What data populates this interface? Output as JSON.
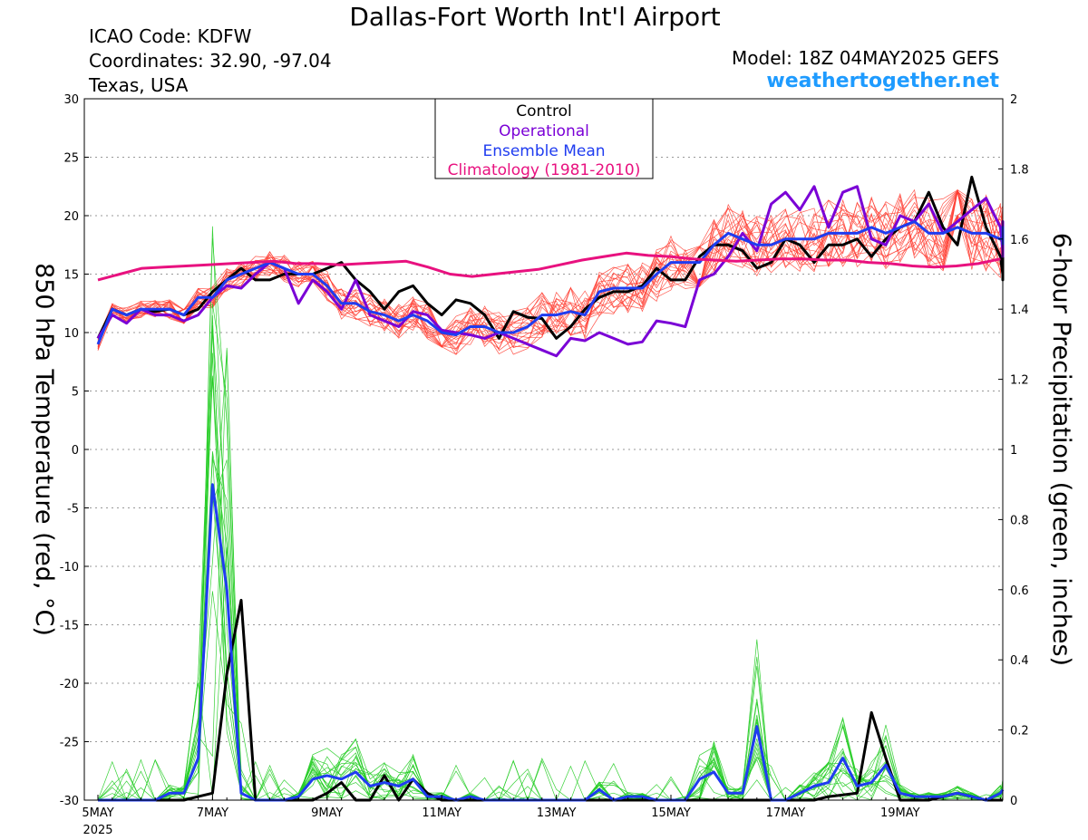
{
  "header": {
    "title": "Dallas-Fort Worth Int'l Airport",
    "icao": "ICAO Code: KDFW",
    "coords": "Coordinates: 32.90, -97.04",
    "region": "Texas, USA",
    "model": "Model: 18Z 04MAY2025 GEFS",
    "brand": "weathertogether.net"
  },
  "colors": {
    "control": "#000000",
    "operational": "#7a00d6",
    "ensemble_mean": "#1f3cf0",
    "climatology": "#e8117f",
    "members_temp": "#ff3b2f",
    "members_precip": "#22cc22",
    "brand": "#1e9bff"
  },
  "chart_data": {
    "type": "line",
    "x_unit": "days since 5MAY 00Z",
    "x_range": [
      0,
      15.75
    ],
    "x_ticks": [
      {
        "x": 0,
        "label": "5MAY",
        "sub": "2025"
      },
      {
        "x": 2,
        "label": "7MAY"
      },
      {
        "x": 4,
        "label": "9MAY"
      },
      {
        "x": 6,
        "label": "11MAY"
      },
      {
        "x": 8,
        "label": "13MAY"
      },
      {
        "x": 10,
        "label": "15MAY"
      },
      {
        "x": 12,
        "label": "17MAY"
      },
      {
        "x": 14,
        "label": "19MAY"
      }
    ],
    "y_left": {
      "label": "850 hPa Temperature (red, °C)",
      "range": [
        -30,
        30
      ],
      "ticks": [
        -30,
        -25,
        -20,
        -15,
        -10,
        -5,
        0,
        5,
        10,
        15,
        20,
        25,
        30
      ]
    },
    "y_right": {
      "label": "6-hour Precipitation (green, inches)",
      "range": [
        0,
        2
      ],
      "ticks": [
        "0",
        "0.2",
        "0.4",
        "0.6",
        "0.8",
        "1",
        "1.2",
        "1.4",
        "1.6",
        "1.8",
        "2"
      ]
    },
    "legend": {
      "position": "top-center",
      "items": [
        "Control",
        "Operational",
        "Ensemble Mean",
        "Climatology (1981-2010)"
      ]
    },
    "temperature_series": [
      {
        "name": "Control",
        "color_key": "control",
        "values": [
          9.5,
          12,
          11.5,
          12,
          11.8,
          12,
          11.5,
          12,
          13.5,
          14.5,
          15.5,
          14.5,
          14.5,
          15,
          15,
          15,
          15.5,
          16,
          14.5,
          13.5,
          12,
          13.5,
          14,
          12.5,
          11.5,
          12.8,
          12.5,
          11.5,
          9.5,
          11.8,
          11.3,
          11.2,
          9.5,
          10.5,
          12,
          13,
          13.5,
          13.5,
          14,
          15.5,
          14.5,
          14.5,
          16.5,
          17.5,
          17.5,
          17,
          15.5,
          16,
          18,
          17.5,
          16,
          17.5,
          17.5,
          18,
          16.5,
          18,
          19,
          19.5,
          22,
          19,
          17.5,
          23.3,
          19,
          16.5,
          15,
          16.5,
          15,
          14.5,
          14.5,
          17,
          15,
          16
        ]
      },
      {
        "name": "Operational",
        "color_key": "operational",
        "values": [
          9.5,
          11.5,
          10.8,
          12,
          11.5,
          11.5,
          11,
          11.5,
          13,
          14,
          13.8,
          15,
          16,
          15.5,
          12.5,
          14.5,
          13.5,
          12,
          14.5,
          11.5,
          11,
          10.5,
          11.8,
          11.5,
          10.2,
          10,
          9.8,
          9.5,
          10,
          9.5,
          9,
          8.5,
          8,
          9.5,
          9.3,
          10,
          9.5,
          9,
          9.2,
          11,
          10.8,
          10.5,
          14.5,
          15,
          16.5,
          18.5,
          17,
          21,
          22,
          20.5,
          22.5,
          19,
          22,
          22.5,
          18,
          17.5,
          20,
          19.5,
          21,
          18.5,
          19.5,
          20.5,
          21.5,
          19,
          17,
          19,
          18.5,
          18.5,
          16.5,
          18,
          19.5,
          18.5
        ]
      },
      {
        "name": "Ensemble Mean",
        "color_key": "ensemble_mean",
        "values": [
          9,
          12,
          11.5,
          12,
          12,
          12,
          11.5,
          13,
          13,
          14.5,
          15,
          15.5,
          16,
          15.5,
          15,
          15,
          14,
          12.5,
          12.5,
          11.8,
          11.5,
          11,
          11.5,
          11,
          10,
          9.8,
          10.5,
          10.5,
          10,
          10,
          10.5,
          11.5,
          11.5,
          11.8,
          11.5,
          13.5,
          13.8,
          13.8,
          13.8,
          15,
          16,
          16,
          16,
          17.5,
          18.5,
          18,
          17.5,
          17.5,
          18,
          18,
          18,
          18.5,
          18.5,
          18.5,
          19,
          18.5,
          19,
          19.5,
          18.5,
          18.5,
          19,
          18.5,
          18.5,
          18,
          18,
          18.5,
          18.5,
          18.5,
          18,
          18.5,
          19,
          17.5
        ]
      },
      {
        "name": "Climatology (1981-2010)",
        "color_key": "climatology",
        "values": [
          14.5,
          15,
          15.5,
          15.6,
          15.7,
          15.8,
          15.9,
          16,
          16.1,
          15.9,
          15.9,
          15.8,
          15.9,
          16,
          16.1,
          15.6,
          15,
          14.8,
          15,
          15.2,
          15.4,
          15.8,
          16.2,
          16.5,
          16.8,
          16.6,
          16.5,
          16.3,
          16.2,
          16.1,
          16.2,
          16.3,
          16.3,
          16.2,
          16.2,
          16,
          15.9,
          15.7,
          15.6,
          15.7,
          15.9,
          16.3
        ]
      }
    ],
    "precipitation_series": [
      {
        "name": "Control",
        "color_key": "control",
        "values": [
          0,
          0,
          0,
          0,
          0,
          0,
          0,
          0.01,
          0.02,
          0.36,
          0.57,
          0,
          0,
          0,
          0,
          0,
          0.02,
          0.05,
          0,
          0,
          0.07,
          0,
          0.06,
          0.02,
          0,
          0,
          0,
          0,
          0,
          0,
          0,
          0,
          0,
          0,
          0,
          0,
          0,
          0,
          0,
          0,
          0,
          0,
          0,
          0,
          0,
          0,
          0,
          0,
          0,
          0,
          0,
          0.01,
          0.015,
          0.02,
          0.25,
          0.12,
          0,
          0,
          0,
          0.01,
          0.02,
          0.01,
          0,
          0,
          0,
          0,
          0,
          0,
          0,
          0,
          0,
          0
        ]
      },
      {
        "name": "Ensemble Mean",
        "color_key": "ensemble_mean",
        "values": [
          0,
          0,
          0,
          0,
          0,
          0.02,
          0.02,
          0.12,
          0.9,
          0.6,
          0.02,
          0,
          0,
          0,
          0.01,
          0.06,
          0.07,
          0.06,
          0.08,
          0.04,
          0.05,
          0.04,
          0.06,
          0.01,
          0.01,
          0,
          0.01,
          0,
          0,
          0,
          0,
          0,
          0,
          0,
          0,
          0.03,
          0,
          0.01,
          0.01,
          0,
          0,
          0,
          0.06,
          0.08,
          0.02,
          0.02,
          0.21,
          0,
          0,
          0.02,
          0.04,
          0.05,
          0.12,
          0.04,
          0.05,
          0.1,
          0.02,
          0.01,
          0.01,
          0.01,
          0.02,
          0.01,
          0,
          0.02,
          0.03
        ]
      }
    ]
  }
}
